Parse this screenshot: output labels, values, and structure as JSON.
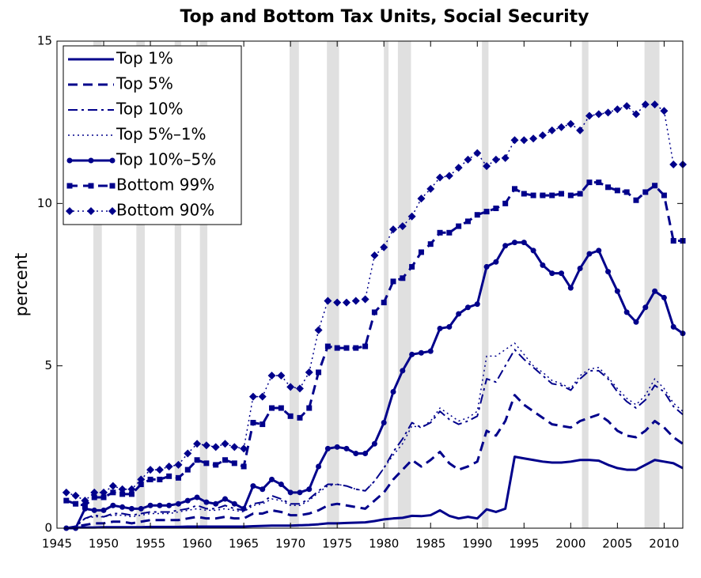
{
  "chart_data": {
    "type": "line",
    "title": "Top and Bottom Tax Units, Social Security",
    "y_label": "percent",
    "x": [
      1946,
      1947,
      1948,
      1949,
      1950,
      1951,
      1952,
      1953,
      1954,
      1955,
      1956,
      1957,
      1958,
      1959,
      1960,
      1961,
      1962,
      1963,
      1964,
      1965,
      1966,
      1967,
      1968,
      1969,
      1970,
      1971,
      1972,
      1973,
      1974,
      1975,
      1976,
      1977,
      1978,
      1979,
      1980,
      1981,
      1982,
      1983,
      1984,
      1985,
      1986,
      1987,
      1988,
      1989,
      1990,
      1991,
      1992,
      1993,
      1994,
      1995,
      1996,
      1997,
      1998,
      1999,
      2000,
      2001,
      2002,
      2003,
      2004,
      2005,
      2006,
      2007,
      2008,
      2009,
      2010,
      2011,
      2012
    ],
    "xlim": [
      1945,
      2012
    ],
    "xticks": [
      1945,
      1950,
      1955,
      1960,
      1965,
      1970,
      1975,
      1980,
      1985,
      1990,
      1995,
      2000,
      2005,
      2010
    ],
    "ylim": [
      0,
      15
    ],
    "yticks": [
      0,
      5,
      10,
      15
    ],
    "legend": "upper left",
    "recession_color": "#e0e0e0",
    "recessions": [
      [
        1948.9,
        1949.8
      ],
      [
        1953.5,
        1954.4
      ],
      [
        1957.6,
        1958.3
      ],
      [
        1960.3,
        1961.1
      ],
      [
        1969.9,
        1970.9
      ],
      [
        1973.9,
        1975.2
      ],
      [
        1980.0,
        1980.5
      ],
      [
        1981.5,
        1982.9
      ],
      [
        1990.5,
        1991.2
      ],
      [
        2001.2,
        2001.9
      ],
      [
        2007.9,
        2009.5
      ]
    ],
    "series": [
      {
        "name": "Top 1%",
        "color": "#00008b",
        "dash": "solid",
        "marker": "none",
        "width": 3,
        "values": [
          0,
          0.02,
          0.02,
          0.02,
          0.03,
          0.03,
          0.03,
          0.03,
          0.03,
          0.04,
          0.04,
          0.04,
          0.04,
          0.05,
          0.05,
          0.05,
          0.05,
          0.05,
          0.05,
          0.05,
          0.06,
          0.07,
          0.08,
          0.08,
          0.08,
          0.09,
          0.1,
          0.12,
          0.15,
          0.15,
          0.16,
          0.17,
          0.18,
          0.22,
          0.27,
          0.3,
          0.32,
          0.38,
          0.37,
          0.4,
          0.55,
          0.38,
          0.3,
          0.35,
          0.3,
          0.58,
          0.5,
          0.6,
          2.2,
          2.15,
          2.1,
          2.05,
          2.02,
          2.02,
          2.05,
          2.1,
          2.1,
          2.08,
          1.95,
          1.85,
          1.8,
          1.8,
          1.95,
          2.1,
          2.05,
          2.0,
          1.85
        ]
      },
      {
        "name": "Top 5%",
        "color": "#00008b",
        "dash": "dashed",
        "marker": "none",
        "width": 3,
        "values": [
          0,
          0.05,
          0.1,
          0.15,
          0.15,
          0.2,
          0.2,
          0.15,
          0.2,
          0.25,
          0.25,
          0.25,
          0.25,
          0.3,
          0.35,
          0.3,
          0.3,
          0.35,
          0.3,
          0.3,
          0.45,
          0.45,
          0.55,
          0.5,
          0.4,
          0.4,
          0.45,
          0.55,
          0.7,
          0.75,
          0.7,
          0.65,
          0.6,
          0.85,
          1.1,
          1.5,
          1.8,
          2.1,
          1.9,
          2.1,
          2.35,
          2.0,
          1.8,
          1.9,
          2.05,
          3.0,
          2.85,
          3.3,
          4.1,
          3.8,
          3.6,
          3.4,
          3.2,
          3.15,
          3.1,
          3.3,
          3.4,
          3.5,
          3.3,
          3.0,
          2.85,
          2.8,
          3.0,
          3.3,
          3.1,
          2.8,
          2.6
        ]
      },
      {
        "name": "Top 10%",
        "color": "#00008b",
        "dash": "dashdot",
        "marker": "none",
        "width": 2,
        "values": [
          0,
          0.05,
          0.3,
          0.4,
          0.35,
          0.45,
          0.45,
          0.4,
          0.45,
          0.5,
          0.5,
          0.5,
          0.55,
          0.6,
          0.7,
          0.6,
          0.6,
          0.7,
          0.6,
          0.55,
          0.75,
          0.8,
          1.0,
          0.9,
          0.75,
          0.75,
          0.9,
          1.15,
          1.35,
          1.35,
          1.3,
          1.2,
          1.15,
          1.45,
          1.85,
          2.35,
          2.75,
          3.25,
          3.1,
          3.25,
          3.6,
          3.35,
          3.2,
          3.3,
          3.45,
          4.6,
          4.5,
          5.0,
          5.5,
          5.2,
          4.95,
          4.7,
          4.45,
          4.4,
          4.25,
          4.6,
          4.85,
          4.85,
          4.6,
          4.2,
          3.9,
          3.7,
          3.95,
          4.4,
          4.2,
          3.75,
          3.5
        ]
      },
      {
        "name": "Top 5%–1%",
        "color": "#00008b",
        "dash": "dotted",
        "marker": "none",
        "width": 1.5,
        "values": [
          0,
          0.05,
          0.3,
          0.35,
          0.35,
          0.4,
          0.4,
          0.35,
          0.4,
          0.45,
          0.45,
          0.45,
          0.5,
          0.55,
          0.6,
          0.55,
          0.55,
          0.6,
          0.55,
          0.5,
          0.7,
          0.75,
          0.9,
          0.85,
          0.7,
          0.7,
          0.85,
          1.1,
          1.3,
          1.35,
          1.3,
          1.2,
          1.15,
          1.45,
          1.85,
          2.25,
          2.6,
          3.15,
          3.1,
          3.3,
          3.7,
          3.5,
          3.3,
          3.4,
          3.6,
          5.3,
          5.3,
          5.5,
          5.7,
          5.35,
          5.0,
          4.8,
          4.55,
          4.45,
          4.3,
          4.7,
          4.9,
          4.95,
          4.65,
          4.3,
          4.0,
          3.8,
          4.1,
          4.6,
          4.3,
          3.85,
          3.6
        ]
      },
      {
        "name": "Top 10%–5%",
        "color": "#00008b",
        "dash": "solid",
        "marker": "circle",
        "width": 3,
        "values": [
          0,
          0,
          0.6,
          0.55,
          0.55,
          0.7,
          0.65,
          0.6,
          0.6,
          0.7,
          0.7,
          0.7,
          0.75,
          0.85,
          0.95,
          0.8,
          0.75,
          0.9,
          0.75,
          0.6,
          1.3,
          1.2,
          1.5,
          1.35,
          1.1,
          1.1,
          1.2,
          1.9,
          2.45,
          2.5,
          2.45,
          2.3,
          2.3,
          2.6,
          3.25,
          4.2,
          4.85,
          5.35,
          5.4,
          5.45,
          6.15,
          6.2,
          6.6,
          6.8,
          6.9,
          8.05,
          8.2,
          8.7,
          8.8,
          8.8,
          8.55,
          8.1,
          7.85,
          7.85,
          7.4,
          8.0,
          8.45,
          8.55,
          7.9,
          7.3,
          6.65,
          6.35,
          6.8,
          7.3,
          7.1,
          6.2,
          6.0
        ]
      },
      {
        "name": "Bottom 99%",
        "color": "#00008b",
        "dash": "dashed",
        "marker": "square",
        "width": 3,
        "values": [
          0.85,
          0.75,
          0.7,
          0.95,
          0.95,
          1.1,
          1.05,
          1.05,
          1.35,
          1.5,
          1.5,
          1.6,
          1.55,
          1.8,
          2.1,
          2.0,
          1.95,
          2.1,
          2.0,
          1.9,
          3.25,
          3.2,
          3.7,
          3.7,
          3.45,
          3.4,
          3.7,
          4.8,
          5.6,
          5.55,
          5.55,
          5.55,
          5.6,
          6.65,
          6.95,
          7.6,
          7.7,
          8.05,
          8.5,
          8.75,
          9.1,
          9.1,
          9.3,
          9.45,
          9.65,
          9.75,
          9.85,
          10.0,
          10.45,
          10.3,
          10.25,
          10.25,
          10.25,
          10.3,
          10.25,
          10.3,
          10.65,
          10.65,
          10.5,
          10.4,
          10.35,
          10.1,
          10.35,
          10.55,
          10.25,
          8.85,
          8.85
        ]
      },
      {
        "name": "Bottom 90%",
        "color": "#00008b",
        "dash": "dotted",
        "marker": "diamond",
        "width": 1.5,
        "values": [
          1.1,
          1.0,
          0.85,
          1.1,
          1.1,
          1.3,
          1.2,
          1.2,
          1.5,
          1.8,
          1.8,
          1.9,
          1.95,
          2.3,
          2.6,
          2.55,
          2.5,
          2.6,
          2.5,
          2.45,
          4.05,
          4.05,
          4.7,
          4.7,
          4.35,
          4.3,
          4.8,
          6.1,
          7.0,
          6.95,
          6.95,
          7.0,
          7.05,
          8.4,
          8.65,
          9.2,
          9.3,
          9.6,
          10.15,
          10.45,
          10.8,
          10.85,
          11.1,
          11.35,
          11.55,
          11.15,
          11.35,
          11.4,
          11.95,
          11.95,
          12.0,
          12.1,
          12.25,
          12.35,
          12.45,
          12.25,
          12.7,
          12.75,
          12.8,
          12.9,
          13.0,
          12.75,
          13.05,
          13.05,
          12.85,
          11.2,
          11.2
        ]
      }
    ]
  }
}
